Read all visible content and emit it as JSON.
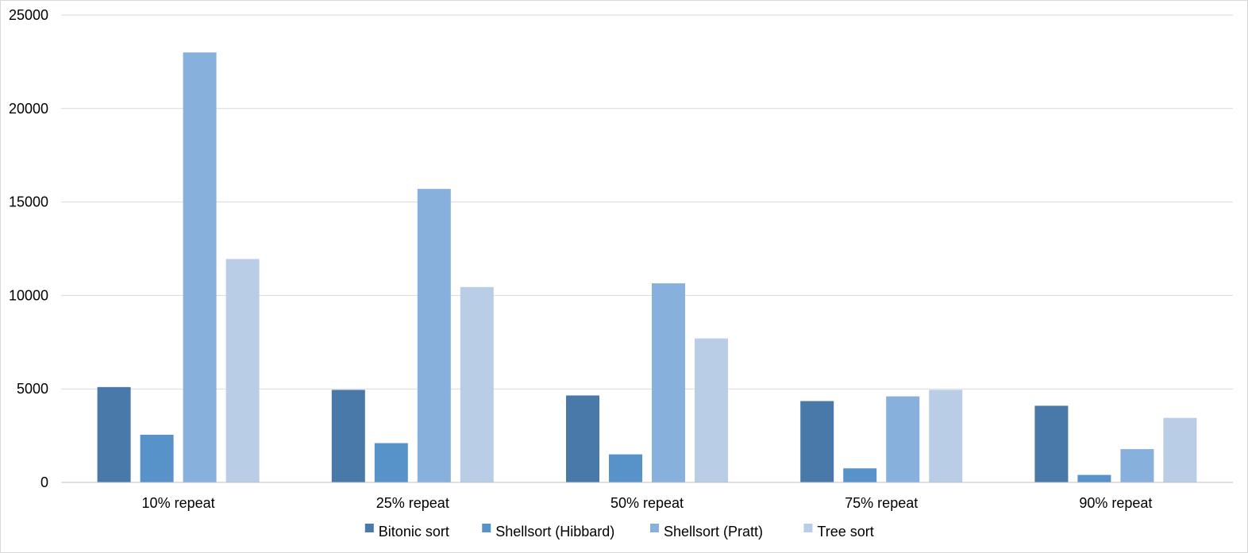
{
  "chart_data": {
    "type": "bar",
    "title": "",
    "xlabel": "",
    "ylabel": "",
    "ylim": [
      0,
      25000
    ],
    "yticks": [
      0,
      5000,
      10000,
      15000,
      20000,
      25000
    ],
    "ytick_labels": [
      "0",
      "5000",
      "10000",
      "15000",
      "20000",
      "25000"
    ],
    "grid": true,
    "legend_position": "bottom",
    "categories": [
      "10% repeat",
      "25% repeat",
      "50% repeat",
      "75% repeat",
      "90% repeat"
    ],
    "series": [
      {
        "name": "Bitonic sort",
        "color": "#4979A8",
        "values": [
          5100,
          4950,
          4650,
          4350,
          4100
        ]
      },
      {
        "name": "Shellsort (Hibbard)",
        "color": "#5793C9",
        "values": [
          2550,
          2100,
          1500,
          750,
          400
        ]
      },
      {
        "name": "Shellsort (Pratt)",
        "color": "#88B0DC",
        "values": [
          23000,
          15700,
          10650,
          4600,
          1780
        ]
      },
      {
        "name": "Tree sort",
        "color": "#B9CDE7",
        "values": [
          11950,
          10450,
          7700,
          4950,
          3450
        ]
      }
    ]
  }
}
